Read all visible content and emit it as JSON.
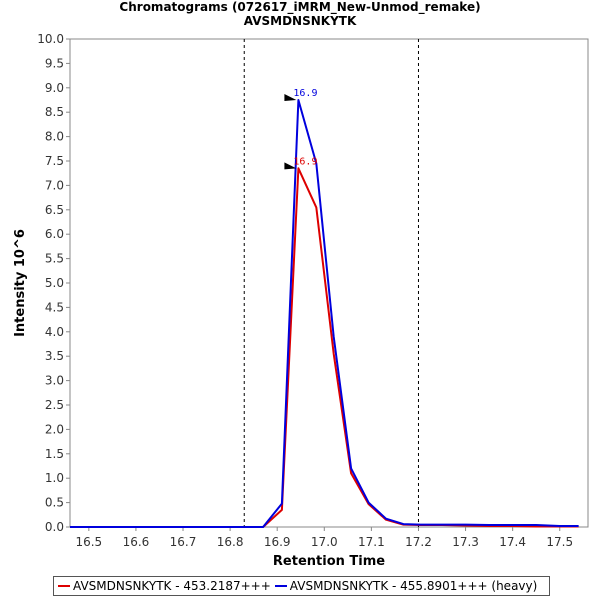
{
  "header": {
    "title_line1": "Chromatograms (072617_iMRM_New-Unmod_remake)",
    "title_line2": "AVSMDNSNKYTK"
  },
  "chart_data": {
    "type": "line",
    "xlabel": "Retention Time",
    "ylabel": "Intensity 10^6",
    "xlim": [
      16.46,
      17.56
    ],
    "ylim": [
      0,
      10.0
    ],
    "x_ticks": [
      "16.5",
      "16.6",
      "16.7",
      "16.8",
      "16.9",
      "17.0",
      "17.1",
      "17.2",
      "17.3",
      "17.4",
      "17.5"
    ],
    "y_ticks": [
      "0.0",
      "0.5",
      "1.0",
      "1.5",
      "2.0",
      "2.5",
      "3.0",
      "3.5",
      "4.0",
      "4.5",
      "5.0",
      "5.5",
      "6.0",
      "6.5",
      "7.0",
      "7.5",
      "8.0",
      "8.5",
      "9.0",
      "9.5",
      "10.0"
    ],
    "boundaries": [
      16.83,
      17.2
    ],
    "grid": false,
    "legend_position": "bottom",
    "series": [
      {
        "name": "AVSMDNSNKYTK - 453.2187+++",
        "color": "#dd0000",
        "x": [
          16.46,
          16.5,
          16.6,
          16.7,
          16.8,
          16.83,
          16.87,
          16.91,
          16.945,
          16.983,
          17.02,
          17.057,
          17.094,
          17.131,
          17.168,
          17.205,
          17.25,
          17.3,
          17.35,
          17.4,
          17.45,
          17.5,
          17.54
        ],
        "values": [
          0.0,
          0.0,
          0.0,
          0.0,
          0.0,
          0.0,
          0.0,
          0.35,
          7.35,
          6.55,
          3.55,
          1.1,
          0.47,
          0.15,
          0.05,
          0.04,
          0.04,
          0.03,
          0.02,
          0.02,
          0.01,
          0.01,
          0.01
        ],
        "peak_label": "16.9",
        "peak_x": 16.945,
        "peak_y": 7.35
      },
      {
        "name": "AVSMDNSNKYTK - 455.8901+++ (heavy)",
        "color": "#0000dd",
        "x": [
          16.46,
          16.5,
          16.6,
          16.7,
          16.8,
          16.83,
          16.87,
          16.91,
          16.945,
          16.983,
          17.02,
          17.057,
          17.094,
          17.131,
          17.168,
          17.205,
          17.25,
          17.3,
          17.35,
          17.4,
          17.45,
          17.5,
          17.54
        ],
        "values": [
          0.0,
          0.0,
          0.0,
          0.0,
          0.0,
          0.0,
          0.0,
          0.48,
          8.75,
          7.45,
          3.9,
          1.2,
          0.5,
          0.17,
          0.06,
          0.05,
          0.05,
          0.05,
          0.04,
          0.04,
          0.04,
          0.02,
          0.02
        ],
        "peak_label": "16.9",
        "peak_x": 16.945,
        "peak_y": 8.75
      }
    ]
  }
}
